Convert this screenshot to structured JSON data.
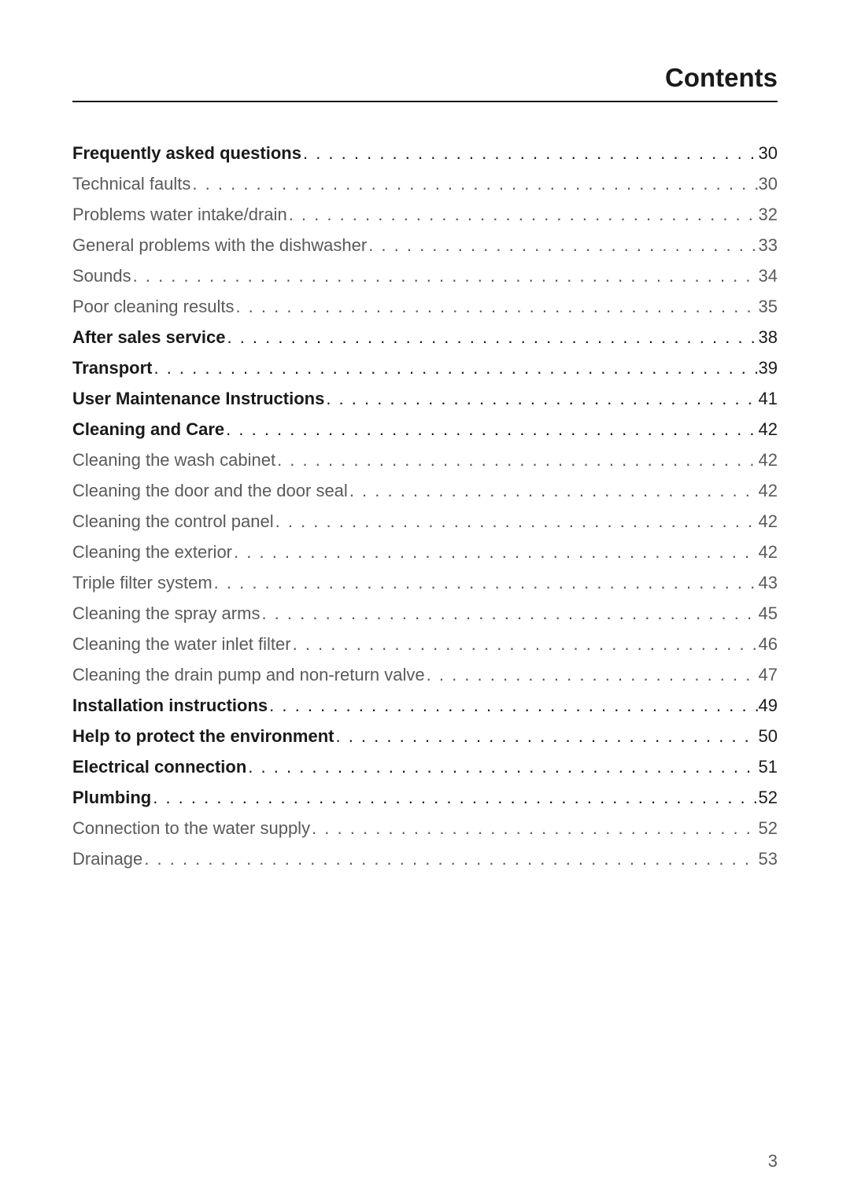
{
  "header": {
    "title": "Contents"
  },
  "toc": {
    "entries": [
      {
        "label": "Frequently asked questions",
        "page": "30",
        "bold": true
      },
      {
        "label": "Technical faults",
        "page": "30",
        "bold": false
      },
      {
        "label": "Problems water intake/drain",
        "page": "32",
        "bold": false
      },
      {
        "label": "General problems with the dishwasher",
        "page": "33",
        "bold": false
      },
      {
        "label": "Sounds",
        "page": "34",
        "bold": false
      },
      {
        "label": "Poor cleaning results",
        "page": "35",
        "bold": false
      },
      {
        "label": "After sales service",
        "page": "38",
        "bold": true
      },
      {
        "label": "Transport",
        "page": "39",
        "bold": true
      },
      {
        "label": "User Maintenance Instructions",
        "page": "41",
        "bold": true
      },
      {
        "label": "Cleaning and Care",
        "page": "42",
        "bold": true
      },
      {
        "label": "Cleaning the wash cabinet",
        "page": "42",
        "bold": false
      },
      {
        "label": "Cleaning the door and the door seal",
        "page": "42",
        "bold": false
      },
      {
        "label": "Cleaning the control panel",
        "page": "42",
        "bold": false
      },
      {
        "label": "Cleaning the exterior",
        "page": "42",
        "bold": false
      },
      {
        "label": "Triple filter system",
        "page": "43",
        "bold": false
      },
      {
        "label": "Cleaning the spray arms",
        "page": "45",
        "bold": false
      },
      {
        "label": "Cleaning the water inlet filter",
        "page": "46",
        "bold": false
      },
      {
        "label": "Cleaning the drain pump and non-return valve",
        "page": "47",
        "bold": false
      },
      {
        "label": "Installation instructions",
        "page": "49",
        "bold": true
      },
      {
        "label": "Help to protect the environment",
        "page": "50",
        "bold": true
      },
      {
        "label": "Electrical connection",
        "page": "51",
        "bold": true
      },
      {
        "label": "Plumbing",
        "page": "52",
        "bold": true
      },
      {
        "label": "Connection to the water supply",
        "page": "52",
        "bold": false
      },
      {
        "label": "Drainage",
        "page": "53",
        "bold": false
      }
    ]
  },
  "footer": {
    "page_number": "3"
  },
  "styles": {
    "background_color": "#ffffff",
    "text_color": "#1a1a1a",
    "light_text_color": "#5a5a5a",
    "header_fontsize": 33,
    "body_fontsize": 22,
    "page_padding_lr": 92,
    "page_padding_top": 80,
    "divider_width": 2
  }
}
